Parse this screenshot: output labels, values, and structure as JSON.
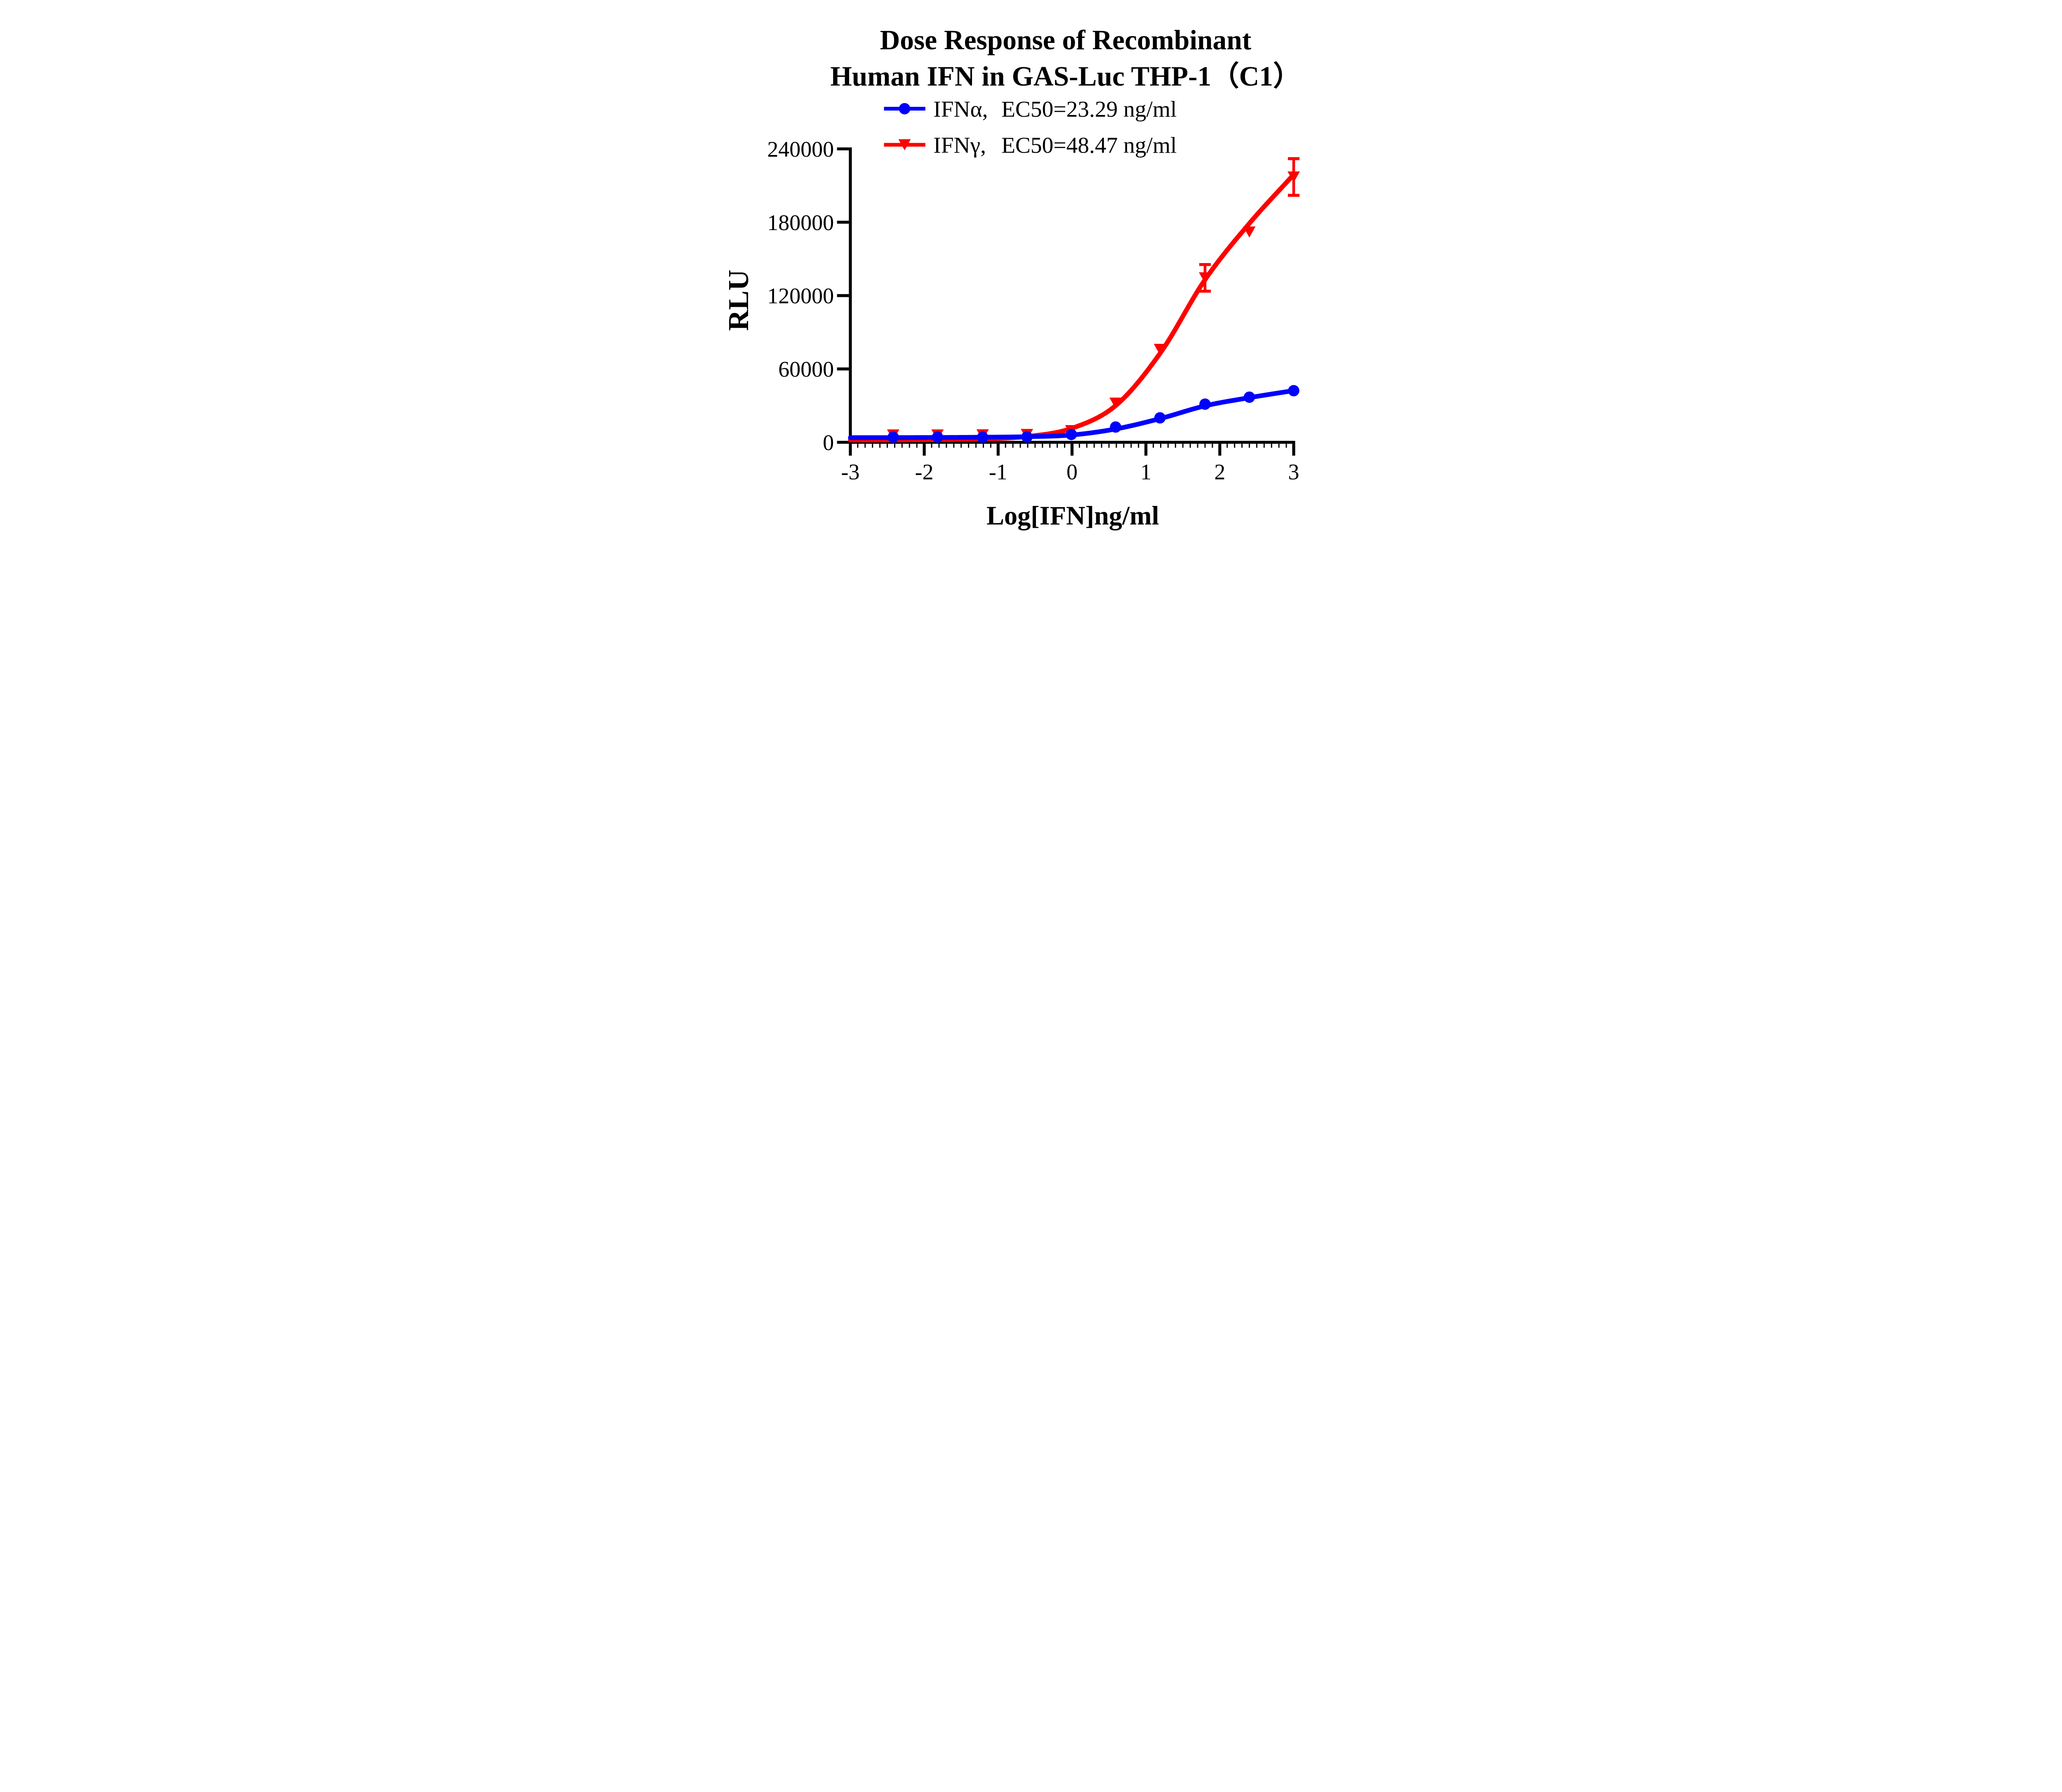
{
  "title": {
    "line1": "Dose Response of Recombinant",
    "line2": "Human IFN in GAS-Luc THP-1（C1）"
  },
  "axes": {
    "x_label": "Log[IFN]ng/ml",
    "y_label": "RLU",
    "x_tick_labels": [
      "-3",
      "-2",
      "-1",
      "0",
      "1",
      "2",
      "3"
    ],
    "y_tick_labels": [
      "0",
      "60000",
      "120000",
      "180000",
      "240000"
    ]
  },
  "legend": {
    "entries": [
      {
        "name": "IFNα,",
        "ec50": "EC50=23.29 ng/ml",
        "color": "#0000FF",
        "marker": "circle"
      },
      {
        "name": "IFNγ,",
        "ec50": "EC50=48.47 ng/ml",
        "color": "#FF0000",
        "marker": "triangle-down"
      }
    ]
  },
  "chart_data": {
    "type": "line",
    "title": "Dose Response of Recombinant Human IFN in GAS-Luc THP-1（C1）",
    "xlabel": "Log[IFN]ng/ml",
    "ylabel": "RLU",
    "xlim": [
      -3,
      3
    ],
    "ylim": [
      0,
      240000
    ],
    "x_ticks": [
      -3,
      -2,
      -1,
      0,
      1,
      2,
      3
    ],
    "y_ticks": [
      0,
      60000,
      120000,
      180000,
      240000
    ],
    "grid": false,
    "legend_position": "top",
    "series": [
      {
        "name": "IFNα",
        "ec50_ng_ml": 23.29,
        "color": "#0000FF",
        "marker": "circle",
        "x": [
          -2.42,
          -1.82,
          -1.21,
          -0.61,
          -0.01,
          0.59,
          1.19,
          1.8,
          2.4,
          3.0
        ],
        "y": [
          4200,
          4250,
          4200,
          4400,
          6400,
          12500,
          20000,
          31200,
          36900,
          42200
        ],
        "yerr": [
          0,
          0,
          0,
          0,
          0,
          0,
          0,
          0,
          0,
          0
        ],
        "fit_curve": {
          "x": [
            -3,
            -2.4,
            -1.8,
            -1.2,
            -0.6,
            0,
            0.6,
            1.2,
            1.8,
            2.4,
            3
          ],
          "y": [
            3800,
            3850,
            3950,
            4150,
            4600,
            6000,
            11000,
            19500,
            29800,
            36500,
            42300
          ]
        }
      },
      {
        "name": "IFNγ",
        "ec50_ng_ml": 48.47,
        "color": "#FF0000",
        "marker": "triangle-down",
        "x": [
          -2.42,
          -1.82,
          -1.21,
          -0.61,
          -0.01,
          0.59,
          1.19,
          1.8,
          2.4,
          3.0
        ],
        "y": [
          6000,
          6000,
          6100,
          6400,
          9500,
          32000,
          76000,
          134500,
          172000,
          217000
        ],
        "yerr": [
          0,
          0,
          0,
          0,
          0,
          0,
          0,
          10900,
          0,
          15000
        ],
        "fit_curve": {
          "x": [
            -3,
            -2.4,
            -1.8,
            -1.2,
            -0.6,
            0,
            0.6,
            1.2,
            1.8,
            2.4,
            3
          ],
          "y": [
            1900,
            2000,
            2200,
            2800,
            4800,
            11500,
            30500,
            73500,
            133000,
            179000,
            219000
          ]
        }
      }
    ]
  }
}
